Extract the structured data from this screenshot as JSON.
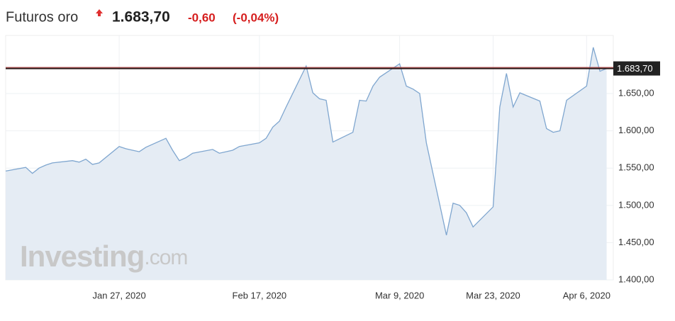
{
  "chart_data": {
    "type": "area",
    "title": "Futuros oro",
    "change": "-0,60",
    "change_pct": "(-0,04%)",
    "watermark": {
      "brand": "Investing",
      "suffix": ".com"
    },
    "price_line": {
      "value": 1683.7,
      "label": "1.683,70"
    },
    "color": "#7fa6cf",
    "fill": "#e5ecf4",
    "grid": true,
    "x": [
      "2020-01-10",
      "2020-01-13",
      "2020-01-14",
      "2020-01-15",
      "2020-01-16",
      "2020-01-17",
      "2020-01-20",
      "2020-01-21",
      "2020-01-22",
      "2020-01-23",
      "2020-01-24",
      "2020-01-27",
      "2020-01-28",
      "2020-01-29",
      "2020-01-30",
      "2020-01-31",
      "2020-02-03",
      "2020-02-04",
      "2020-02-05",
      "2020-02-06",
      "2020-02-07",
      "2020-02-10",
      "2020-02-11",
      "2020-02-12",
      "2020-02-13",
      "2020-02-14",
      "2020-02-17",
      "2020-02-18",
      "2020-02-19",
      "2020-02-20",
      "2020-02-21",
      "2020-02-24",
      "2020-02-25",
      "2020-02-26",
      "2020-02-27",
      "2020-02-28",
      "2020-03-02",
      "2020-03-03",
      "2020-03-04",
      "2020-03-05",
      "2020-03-06",
      "2020-03-09",
      "2020-03-10",
      "2020-03-11",
      "2020-03-12",
      "2020-03-13",
      "2020-03-16",
      "2020-03-17",
      "2020-03-18",
      "2020-03-19",
      "2020-03-20",
      "2020-03-23",
      "2020-03-24",
      "2020-03-25",
      "2020-03-26",
      "2020-03-27",
      "2020-03-30",
      "2020-03-31",
      "2020-04-01",
      "2020-04-02",
      "2020-04-03",
      "2020-04-06",
      "2020-04-07",
      "2020-04-08",
      "2020-04-09"
    ],
    "values": [
      1546,
      1551,
      1543,
      1550,
      1554,
      1557,
      1560,
      1558,
      1562,
      1555,
      1557,
      1579,
      1576,
      1574,
      1572,
      1578,
      1590,
      1574,
      1560,
      1564,
      1570,
      1575,
      1570,
      1572,
      1574,
      1579,
      1584,
      1590,
      1605,
      1613,
      1632,
      1687,
      1651,
      1643,
      1641,
      1585,
      1598,
      1641,
      1640,
      1660,
      1672,
      1690,
      1660,
      1656,
      1650,
      1584,
      1460,
      1503,
      1500,
      1490,
      1471,
      1498,
      1632,
      1677,
      1632,
      1651,
      1640,
      1603,
      1598,
      1600,
      1641,
      1660,
      1712,
      1680,
      1683.7
    ],
    "xlim": [
      "2020-01-10",
      "2020-04-10"
    ],
    "xticks": [
      {
        "value": "2020-01-27",
        "label": "Jan 27, 2020"
      },
      {
        "value": "2020-02-17",
        "label": "Feb 17, 2020"
      },
      {
        "value": "2020-03-09",
        "label": "Mar 9, 2020"
      },
      {
        "value": "2020-03-23",
        "label": "Mar 23, 2020"
      },
      {
        "value": "2020-04-06",
        "label": "Apr 6, 2020"
      }
    ],
    "ylim": [
      1400,
      1728
    ],
    "yticks": [
      {
        "value": 1400,
        "label": "1.400,00"
      },
      {
        "value": 1450,
        "label": "1.450,00"
      },
      {
        "value": 1500,
        "label": "1.500,00"
      },
      {
        "value": 1550,
        "label": "1.550,00"
      },
      {
        "value": 1600,
        "label": "1.600,00"
      },
      {
        "value": 1650,
        "label": "1.650,00"
      }
    ]
  }
}
